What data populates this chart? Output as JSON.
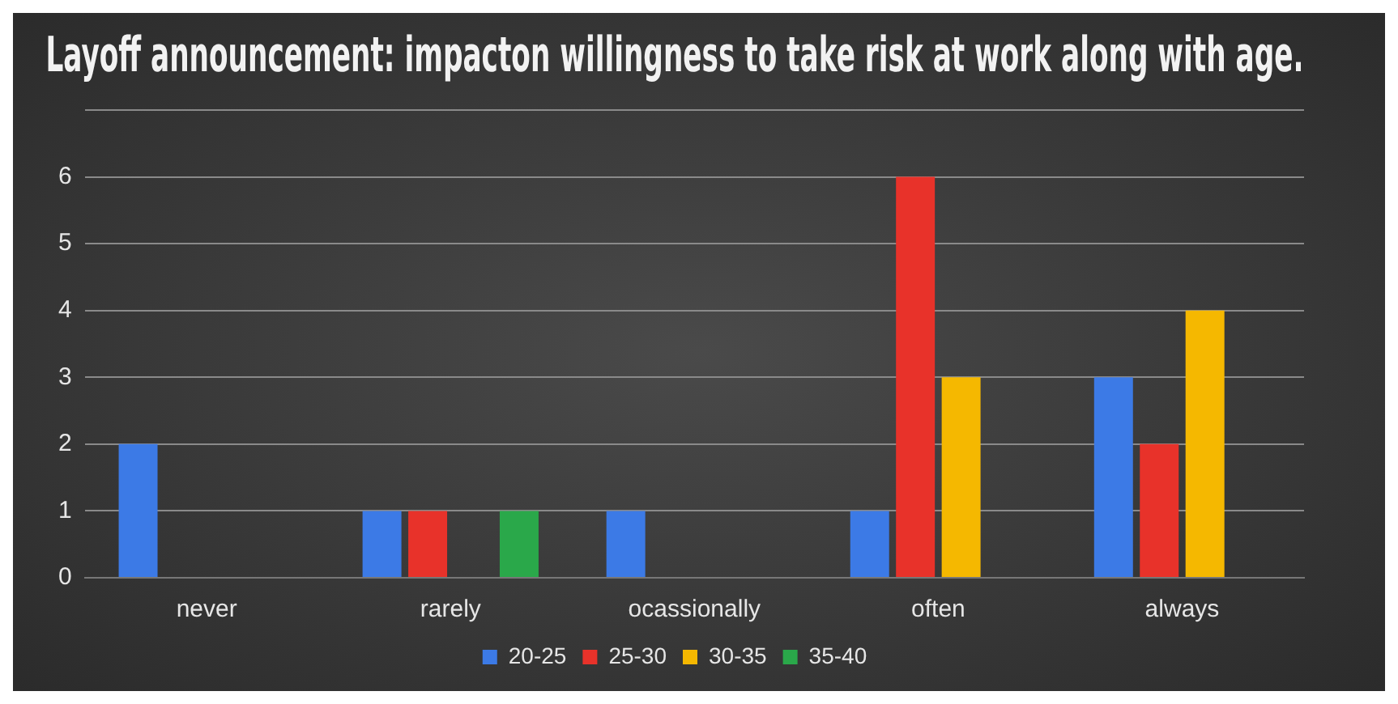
{
  "chart_data": {
    "type": "bar",
    "title": "Layoff announcement: impacton willingness to take risk at work along with age.",
    "categories": [
      "never",
      "rarely",
      "ocassionally",
      "often",
      "always"
    ],
    "series": [
      {
        "name": "20-25",
        "color": "#3c7ae6",
        "values": [
          2,
          1,
          1,
          1,
          3
        ]
      },
      {
        "name": "25-30",
        "color": "#e8322a",
        "values": [
          0,
          1,
          0,
          6,
          2
        ]
      },
      {
        "name": "30-35",
        "color": "#f5b800",
        "values": [
          0,
          0,
          0,
          3,
          4
        ]
      },
      {
        "name": "35-40",
        "color": "#2aa84a",
        "values": [
          0,
          1,
          0,
          0,
          0
        ]
      }
    ],
    "ylim": [
      0,
      7
    ],
    "yticks": [
      0,
      1,
      2,
      3,
      4,
      5,
      6,
      {
        "value": 7,
        "label": null
      }
    ],
    "grid": "y",
    "legend": "bottom"
  }
}
